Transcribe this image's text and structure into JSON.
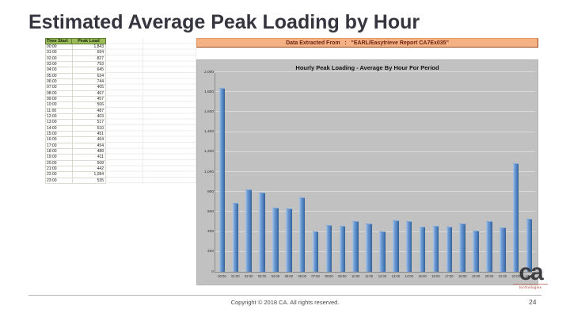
{
  "slide": {
    "title": "Estimated Average Peak Loading by Hour",
    "footer": {
      "copyright": "Copyright © 2018 CA. All rights reserved.",
      "page_number": "24"
    },
    "logo": {
      "text": "ca",
      "subtext": "technologies"
    }
  },
  "spreadsheet": {
    "banner": "Data Extracted From   :   \"EARL/Easytrieve Report CA7Ex035\"",
    "table": {
      "headers": [
        "Time Start",
        "Peak Load"
      ],
      "rows": [
        [
          "00:00",
          "1,843"
        ],
        [
          "01:00",
          "694"
        ],
        [
          "02:00",
          "827"
        ],
        [
          "03:00",
          "793"
        ],
        [
          "04:00",
          "645"
        ],
        [
          "05:00",
          "634"
        ],
        [
          "06:00",
          "744"
        ],
        [
          "07:00",
          "405"
        ],
        [
          "08:00",
          "467"
        ],
        [
          "09:00",
          "457"
        ],
        [
          "10:00",
          "506"
        ],
        [
          "11:00",
          "487"
        ],
        [
          "12:00",
          "403"
        ],
        [
          "13:00",
          "517"
        ],
        [
          "14:00",
          "510"
        ],
        [
          "15:00",
          "451"
        ],
        [
          "16:00",
          "464"
        ],
        [
          "17:00",
          "454"
        ],
        [
          "18:00",
          "488"
        ],
        [
          "19:00",
          "411"
        ],
        [
          "20:00",
          "508"
        ],
        [
          "21:00",
          "442"
        ],
        [
          "22:00",
          "1,084"
        ],
        [
          "23:00",
          "535"
        ]
      ]
    }
  },
  "chart_data": {
    "type": "bar",
    "title": "Hourly Peak Loading - Average By Hour For Period",
    "categories": [
      "00:00",
      "01:00",
      "02:00",
      "03:00",
      "04:00",
      "05:00",
      "06:00",
      "07:00",
      "08:00",
      "09:00",
      "10:00",
      "11:00",
      "12:00",
      "13:00",
      "14:00",
      "15:00",
      "16:00",
      "17:00",
      "18:00",
      "19:00",
      "20:00",
      "21:00",
      "22:00",
      "23:00"
    ],
    "values": [
      1843,
      694,
      827,
      793,
      645,
      634,
      744,
      405,
      467,
      457,
      506,
      487,
      403,
      517,
      510,
      451,
      464,
      454,
      488,
      411,
      508,
      442,
      1084,
      535
    ],
    "xlabel": "",
    "ylabel": "",
    "ylim": [
      0,
      2000
    ],
    "ytick_step": 200,
    "ytick_labels": [
      "0",
      "200",
      "400",
      "600",
      "800",
      "1,000",
      "1,200",
      "1,400",
      "1,600",
      "1,800",
      "2,000"
    ],
    "grid": true,
    "legend_position": "none",
    "bar_color": "#4f81bd",
    "plot_background": "#c1c1c1",
    "banner_background": "#f3b184",
    "header_background": "#9bbb59"
  }
}
